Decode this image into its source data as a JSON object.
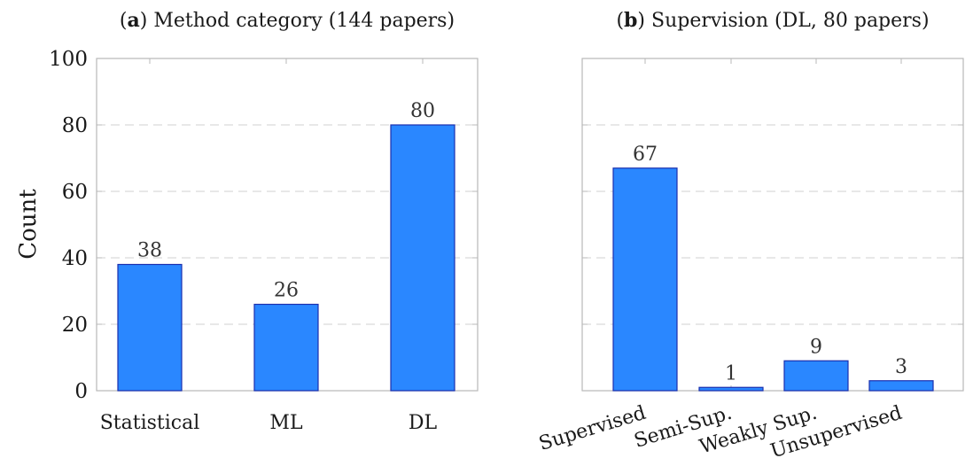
{
  "ylabel": "Count",
  "colors": {
    "bar_fill": "#2a87ff",
    "bar_stroke": "#1b2fae"
  },
  "chart_data": [
    {
      "type": "bar",
      "panel_letter": "a",
      "title": "Method category (144 papers)",
      "categories": [
        "Statistical",
        "ML",
        "DL"
      ],
      "values": [
        38,
        26,
        80
      ],
      "xlabel": "",
      "ylabel": "Count",
      "ylim": [
        0,
        100
      ],
      "yticks": [
        0,
        20,
        40,
        60,
        80,
        100
      ],
      "grid": "horizontal dashed",
      "rotated_category_labels": false
    },
    {
      "type": "bar",
      "panel_letter": "b",
      "title": "Supervision (DL, 80 papers)",
      "categories": [
        "Supervised",
        "Semi-Sup.",
        "Weakly Sup.",
        "Unsupervised"
      ],
      "values": [
        67,
        1,
        9,
        3
      ],
      "xlabel": "",
      "ylabel": "",
      "ylim": [
        0,
        100
      ],
      "yticks": [
        0,
        20,
        40,
        60,
        80,
        100
      ],
      "grid": "horizontal dashed",
      "rotated_category_labels": true
    }
  ]
}
